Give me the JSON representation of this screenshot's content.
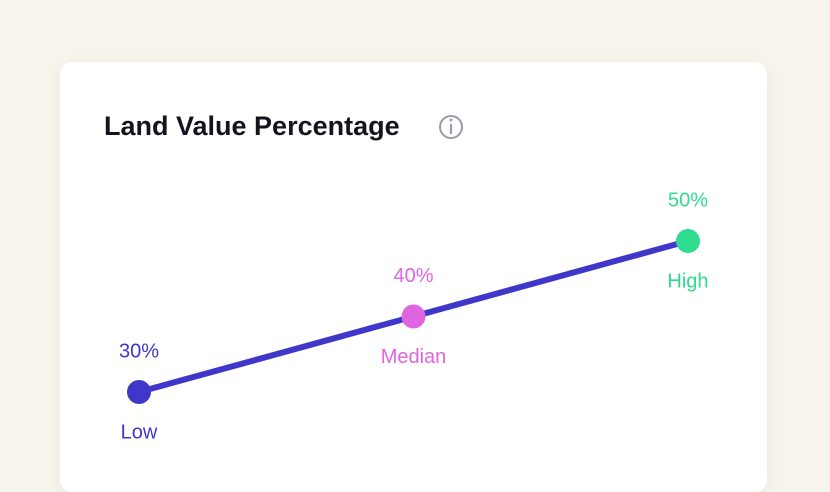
{
  "chart_data": {
    "type": "line",
    "title": "Land Value Percentage",
    "categories": [
      "Low",
      "Median",
      "High"
    ],
    "values": [
      30,
      40,
      50
    ],
    "value_labels": [
      "30%",
      "40%",
      "50%"
    ],
    "color": "#3f37c9",
    "point_colors": [
      "#3f37c9",
      "#e065e0",
      "#2edc8f"
    ]
  }
}
